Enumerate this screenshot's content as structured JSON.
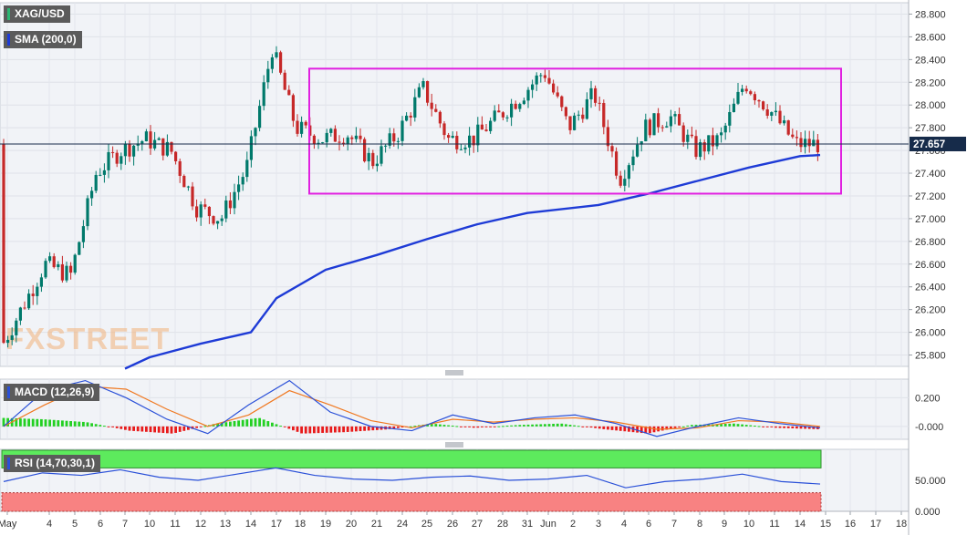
{
  "instrument": "XAG/USD",
  "indicators": {
    "sma_label": "SMA (200,0)",
    "macd_label": "MACD (12,26,9)",
    "rsi_label": "RSI (14,70,30,1)"
  },
  "watermark": "FXSTREET",
  "last_price_label": "27.657",
  "colors": {
    "up_candle": "#00796b",
    "down_candle": "#c62828",
    "sma_line": "#1e3bd6",
    "range_box": "#e020e0",
    "macd_line": "#2a50d8",
    "signal_line": "#f07820",
    "hist_positive": "#22d022",
    "hist_negative": "#e81a1a",
    "rsi_line": "#2a50d8",
    "rsi_overbought_zone": "#5dea5d",
    "rsi_oversold_zone": "#f88282",
    "price_tag": "#162b4a"
  },
  "chart_data": [
    {
      "type": "candlestick",
      "title": "XAG/USD",
      "ylim": [
        25.7,
        28.9
      ],
      "yticks": [
        "25.800",
        "26.000",
        "26.200",
        "26.400",
        "26.600",
        "26.800",
        "27.000",
        "27.200",
        "27.400",
        "27.600",
        "27.800",
        "28.000",
        "28.200",
        "28.400",
        "28.600",
        "28.800"
      ],
      "x_tick_labels": [
        "May",
        "4",
        "5",
        "6",
        "7",
        "10",
        "11",
        "12",
        "13",
        "14",
        "17",
        "18",
        "19",
        "20",
        "21",
        "24",
        "25",
        "26",
        "27",
        "28",
        "31",
        "Jun",
        "2",
        "3",
        "4",
        "6",
        "7",
        "8",
        "9",
        "10",
        "11",
        "14",
        "15",
        "16",
        "17",
        "18"
      ],
      "last_price": 27.657,
      "series_samples": [
        {
          "x": "May",
          "close": 25.9
        },
        {
          "x": "4",
          "close": 26.6
        },
        {
          "x": "5",
          "close": 26.5
        },
        {
          "x": "6",
          "close": 27.4
        },
        {
          "x": "7",
          "close": 27.6
        },
        {
          "x": "10",
          "close": 27.7
        },
        {
          "x": "11",
          "close": 27.6
        },
        {
          "x": "12",
          "close": 27.1
        },
        {
          "x": "13",
          "close": 27.0
        },
        {
          "x": "14",
          "close": 27.45
        },
        {
          "x": "17",
          "close": 28.5
        },
        {
          "x": "18",
          "close": 27.8
        },
        {
          "x": "19",
          "close": 27.7
        },
        {
          "x": "20",
          "close": 27.75
        },
        {
          "x": "21",
          "close": 27.5
        },
        {
          "x": "24",
          "close": 27.75
        },
        {
          "x": "25",
          "close": 28.15
        },
        {
          "x": "26",
          "close": 27.7
        },
        {
          "x": "27",
          "close": 27.7
        },
        {
          "x": "28",
          "close": 27.9
        },
        {
          "x": "31",
          "close": 28.1
        },
        {
          "x": "Jun",
          "close": 28.3
        },
        {
          "x": "2",
          "close": 27.8
        },
        {
          "x": "3",
          "close": 28.1
        },
        {
          "x": "4",
          "close": 27.35
        },
        {
          "x": "6",
          "close": 27.8
        },
        {
          "x": "7",
          "close": 27.9
        },
        {
          "x": "8",
          "close": 27.6
        },
        {
          "x": "9",
          "close": 27.7
        },
        {
          "x": "10",
          "close": 28.2
        },
        {
          "x": "11",
          "close": 27.95
        },
        {
          "x": "14",
          "close": 27.657
        }
      ],
      "sma_200": [
        {
          "x": "7",
          "y": 25.68
        },
        {
          "x": "10",
          "y": 25.78
        },
        {
          "x": "12",
          "y": 25.9
        },
        {
          "x": "14",
          "y": 26.0
        },
        {
          "x": "17",
          "y": 26.3
        },
        {
          "x": "19",
          "y": 26.55
        },
        {
          "x": "21",
          "y": 26.68
        },
        {
          "x": "25",
          "y": 26.82
        },
        {
          "x": "27",
          "y": 26.95
        },
        {
          "x": "31",
          "y": 27.05
        },
        {
          "x": "3",
          "y": 27.12
        },
        {
          "x": "6",
          "y": 27.22
        },
        {
          "x": "10",
          "y": 27.45
        },
        {
          "x": "14",
          "y": 27.55
        }
      ],
      "annotation": {
        "type": "range-box",
        "from": "18",
        "to": "15",
        "y_top": 28.32,
        "y_bottom": 27.22
      }
    },
    {
      "type": "macd",
      "title": "MACD (12,26,9)",
      "ylim": [
        -0.09,
        0.33
      ],
      "yticks": [
        "0.200",
        "-0.000"
      ],
      "macd_samples": [
        0.0,
        0.25,
        0.32,
        0.2,
        0.05,
        -0.05,
        0.15,
        0.32,
        0.1,
        0.0,
        -0.03,
        0.08,
        0.02,
        0.06,
        0.08,
        0.02,
        -0.07,
        0.0,
        0.06,
        0.02,
        -0.01
      ],
      "signal_samples": [
        0.0,
        0.15,
        0.28,
        0.26,
        0.12,
        0.0,
        0.08,
        0.25,
        0.15,
        0.04,
        -0.01,
        0.05,
        0.03,
        0.05,
        0.06,
        0.03,
        -0.02,
        -0.01,
        0.04,
        0.03,
        0.0
      ],
      "histogram_samples": [
        0.06,
        0.05,
        0.03,
        -0.03,
        -0.05,
        0.02,
        0.06,
        -0.05,
        -0.04,
        -0.02,
        0.02,
        -0.01,
        0.01,
        0.02,
        -0.02,
        -0.05,
        0.01,
        0.02,
        -0.01,
        -0.02
      ]
    },
    {
      "type": "rsi",
      "title": "RSI (14,70,30,1)",
      "ylim": [
        0,
        100
      ],
      "yticks": [
        "50.000",
        "0.000"
      ],
      "overbought": 70,
      "oversold": 30,
      "rsi_samples": [
        48,
        62,
        58,
        67,
        55,
        50,
        60,
        70,
        58,
        52,
        50,
        55,
        57,
        50,
        52,
        58,
        38,
        48,
        52,
        60,
        48,
        44
      ]
    }
  ]
}
